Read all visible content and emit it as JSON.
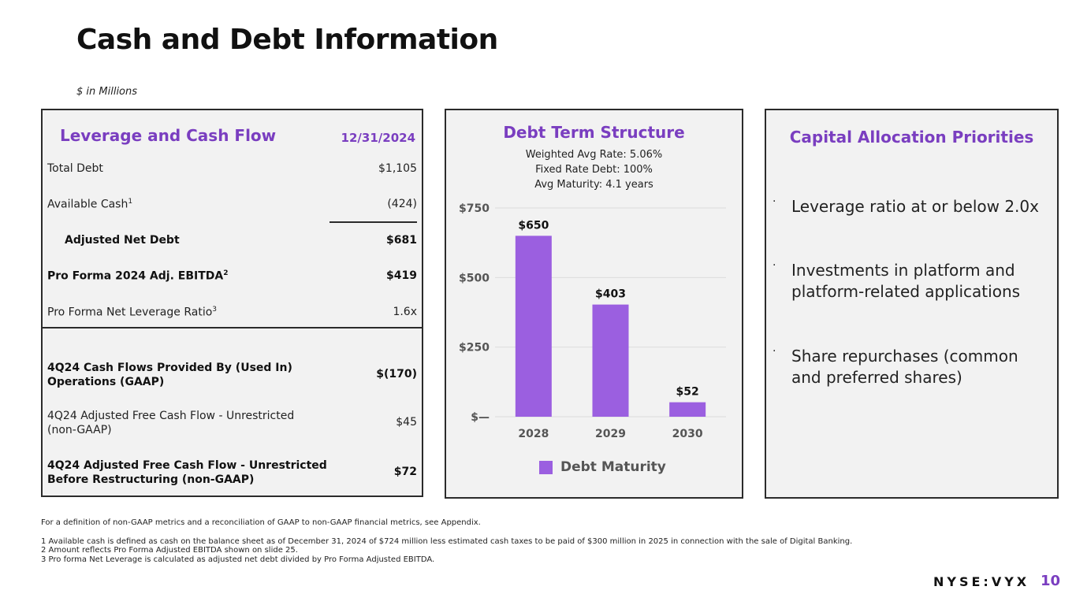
{
  "page": {
    "title": "Cash and Debt Information",
    "subtitle": "$ in Millions",
    "brand": "NYSE:VYX",
    "page_number": "10",
    "accent_color": "#7a3ec0",
    "bar_color": "#9b5fe0"
  },
  "leverage": {
    "heading": "Leverage and Cash Flow",
    "date": "12/31/2024",
    "rows": [
      {
        "label": "Total Debt",
        "sup": "",
        "value": "$1,105"
      },
      {
        "label": "Available Cash",
        "sup": "1",
        "value": "(424)"
      },
      {
        "label": "Adjusted Net Debt",
        "sup": "",
        "value": "$681"
      },
      {
        "label": "Pro Forma 2024 Adj. EBITDA",
        "sup": "2",
        "value": "$419"
      },
      {
        "label": "Pro Forma Net Leverage Ratio",
        "sup": "3",
        "value": "1.6x"
      },
      {
        "label_line1": "4Q24 Cash Flows Provided By (Used In)",
        "label_line2": "Operations (GAAP)",
        "value": "$(170)"
      },
      {
        "label_line1": "4Q24 Adjusted Free Cash Flow - Unrestricted",
        "label_line2": "(non-GAAP)",
        "value": "$45"
      },
      {
        "label_line1": "4Q24 Adjusted Free Cash Flow - Unrestricted",
        "label_line2": "Before Restructuring (non-GAAP)",
        "value": "$72"
      }
    ]
  },
  "debt": {
    "heading": "Debt Term Structure",
    "stats": [
      "Weighted Avg Rate: 5.06%",
      "Fixed Rate Debt: 100%",
      "Avg Maturity: 4.1 years"
    ],
    "legend": "Debt Maturity"
  },
  "chart_data": {
    "type": "bar",
    "title": "Debt Term Structure",
    "categories": [
      "2028",
      "2029",
      "2030"
    ],
    "values": [
      650,
      403,
      52
    ],
    "value_labels": [
      "$650",
      "$403",
      "$52"
    ],
    "y_ticks": [
      0,
      250,
      500,
      750
    ],
    "y_tick_labels": [
      "$—",
      "$250",
      "$500",
      "$750"
    ],
    "ylim": [
      0,
      750
    ],
    "legend": [
      "Debt Maturity"
    ],
    "grid": true
  },
  "priorities": {
    "heading": "Capital Allocation Priorities",
    "bullet_glyph": "·",
    "items": [
      {
        "line1": "Leverage ratio at or below 2.0x",
        "line2": ""
      },
      {
        "line1": "Investments in platform and",
        "line2": "platform-related applications"
      },
      {
        "line1": "Share repurchases (common",
        "line2": "and preferred shares)"
      }
    ]
  },
  "footnotes": {
    "intro": "For a definition of non-GAAP metrics and a reconciliation of GAAP to non-GAAP financial metrics, see Appendix.",
    "notes": [
      "1 Available cash is defined as cash on the balance sheet as of December 31, 2024 of $724 million less estimated cash taxes to be paid of $300 million in 2025 in connection with the sale of Digital Banking.",
      "2 Amount reflects Pro Forma Adjusted EBITDA shown on slide 25.",
      "3 Pro forma Net Leverage is calculated as adjusted net debt divided by Pro Forma Adjusted EBITDA."
    ]
  }
}
